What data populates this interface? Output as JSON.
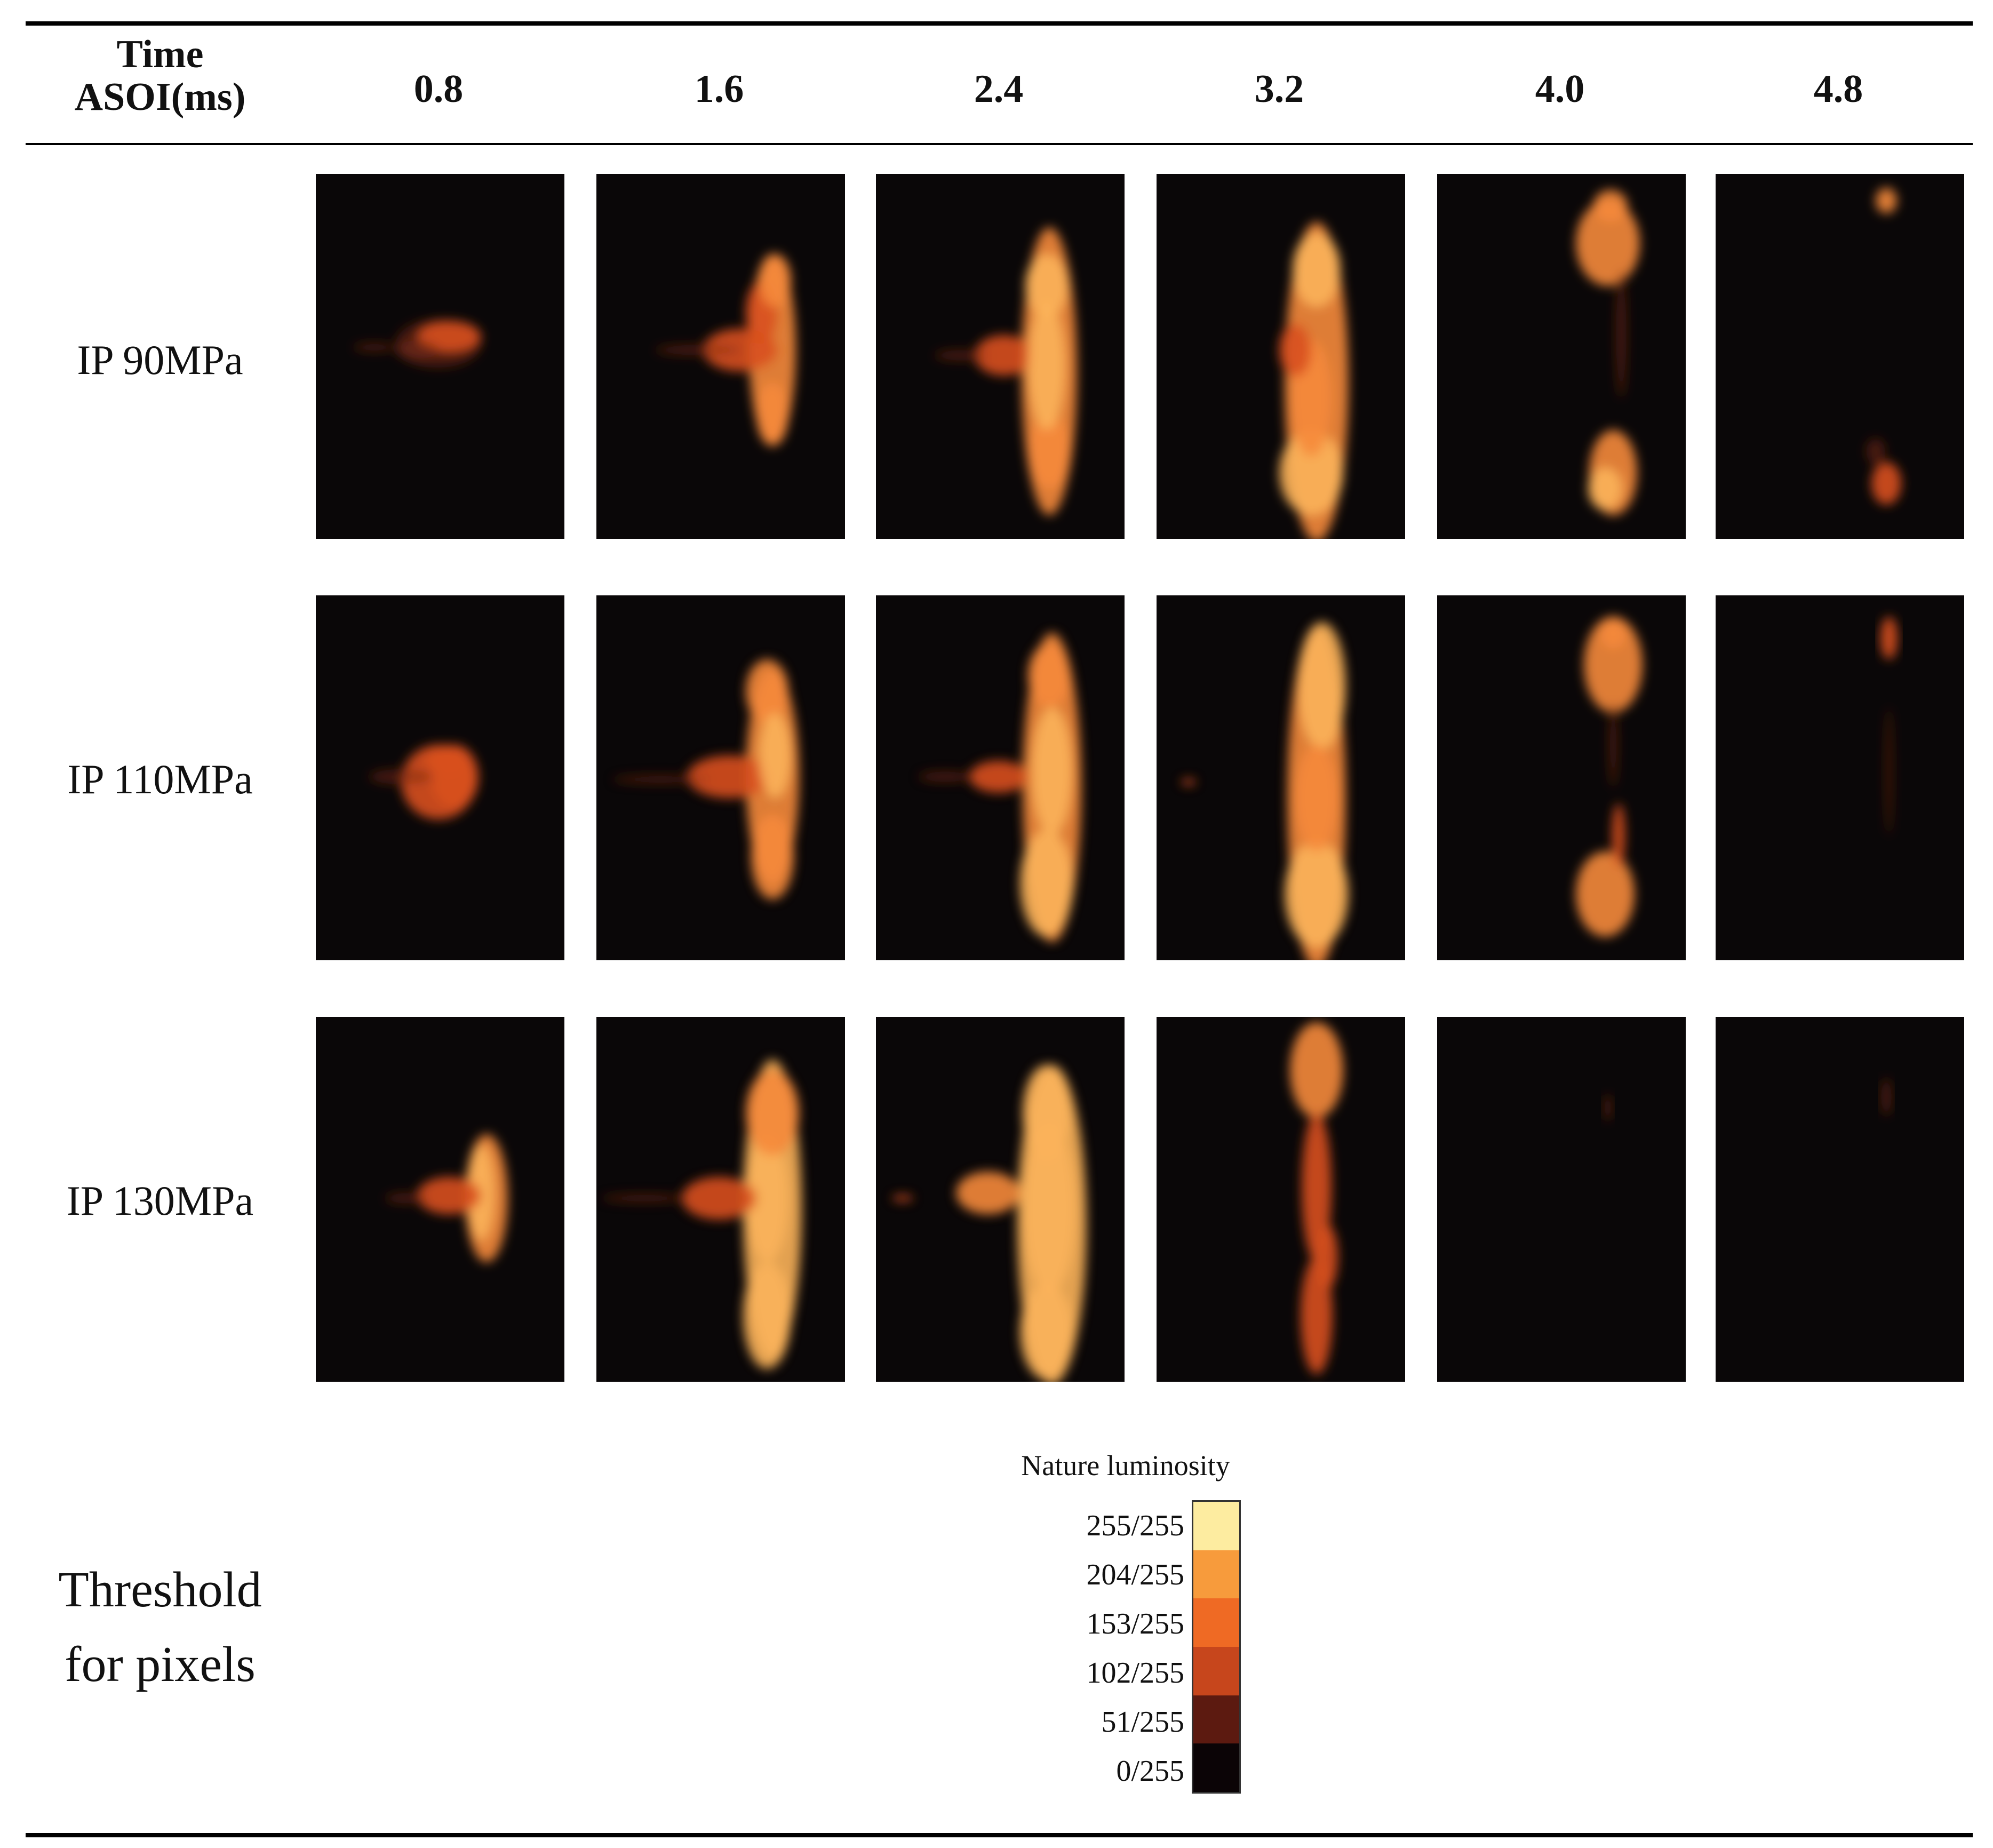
{
  "table": {
    "header_label_line1": "Time",
    "header_label_line2": "ASOI(ms)",
    "times": [
      "0.8",
      "1.6",
      "2.4",
      "3.2",
      "4.0",
      "4.8"
    ],
    "rows": [
      {
        "label": "IP 90MPa"
      },
      {
        "label": "IP 110MPa"
      },
      {
        "label": "IP 130MPa"
      }
    ]
  },
  "threshold": {
    "label_line1": "Threshold",
    "label_line2": "for pixels"
  },
  "colorbar": {
    "title": "Nature luminosity",
    "levels": [
      {
        "label": "255/255",
        "color": "#fdeca0"
      },
      {
        "label": "204/255",
        "color": "#f79b3c"
      },
      {
        "label": "153/255",
        "color": "#ef6a24"
      },
      {
        "label": "102/255",
        "color": "#c7461c"
      },
      {
        "label": "51/255",
        "color": "#5c1a10"
      },
      {
        "label": "0/255",
        "color": "#0b0406"
      }
    ]
  },
  "colors": {
    "frame_background": "#0a0708",
    "flame_dim": "#7a2a16",
    "flame_mid": "#d8501e",
    "flame_bright": "#f58a3a",
    "flame_hot": "#fbb35a"
  }
}
